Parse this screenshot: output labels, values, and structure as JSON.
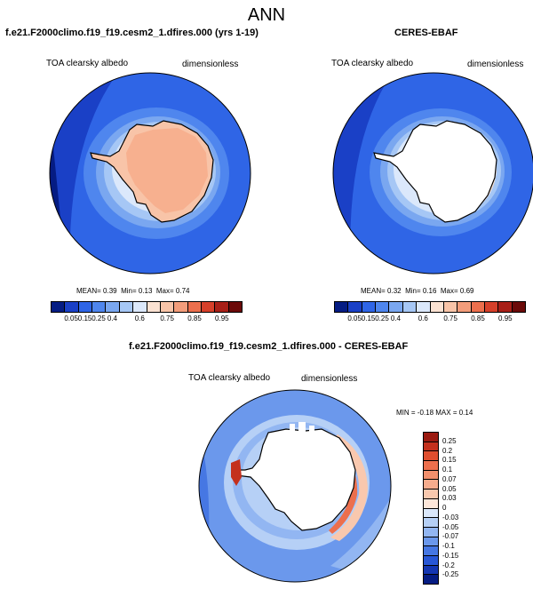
{
  "figure_title": "ANN",
  "panels": [
    {
      "title": "f.e21.F2000climo.f19_f19.cesm2_1.dfires.000 (yrs 1-19)",
      "left_label": "TOA clearsky albedo",
      "right_label": "dimensionless",
      "stats": {
        "mean": "0.39",
        "min": "0.13",
        "max": "0.74"
      }
    },
    {
      "title": "CERES-EBAF",
      "left_label": "TOA clearsky albedo",
      "right_label": "dimensionless",
      "stats": {
        "mean": "0.32",
        "min": "0.16",
        "max": "0.69"
      }
    },
    {
      "title": "f.e21.F2000climo.f19_f19.cesm2_1.dfires.000 - CERES-EBAF",
      "left_label": "TOA clearsky albedo",
      "right_label": "dimensionless",
      "stats": {
        "min": "-0.18",
        "max": "0.14"
      }
    }
  ],
  "labels": {
    "mean": "MEAN=",
    "min": "Min=",
    "max": "Max=",
    "diff_min": "MIN =",
    "diff_max": "MAX ="
  },
  "chart_data": [
    {
      "type": "heatmap",
      "projection": "south-polar-stereographic",
      "field": "model TOA clearsky albedo",
      "levels": [
        "0.05",
        "0.15",
        "0.25",
        "0.4",
        "0.6",
        "0.75",
        "0.85",
        "0.95"
      ],
      "colors": [
        "#051c83",
        "#1a40c6",
        "#2f65e6",
        "#4f86ee",
        "#7aa7f0",
        "#a6c7f5",
        "#dbe8fb",
        "#fbe2d2",
        "#f8c4a8",
        "#f39d7b",
        "#ec6f4d",
        "#d6402a",
        "#a81f17",
        "#6b0a09"
      ]
    },
    {
      "type": "heatmap",
      "projection": "south-polar-stereographic",
      "field": "CERES-EBAF TOA clearsky albedo",
      "levels": [
        "0.05",
        "0.15",
        "0.25",
        "0.4",
        "0.6",
        "0.75",
        "0.85",
        "0.95"
      ],
      "colors": [
        "#051c83",
        "#1a40c6",
        "#2f65e6",
        "#4f86ee",
        "#7aa7f0",
        "#a6c7f5",
        "#dbe8fb",
        "#fbe2d2",
        "#f8c4a8",
        "#f39d7b",
        "#ec6f4d",
        "#d6402a",
        "#a81f17",
        "#6b0a09"
      ]
    },
    {
      "type": "heatmap",
      "projection": "south-polar-stereographic",
      "field": "difference (model - obs)",
      "levels": [
        "0.25",
        "0.2",
        "0.15",
        "0.1",
        "0.07",
        "0.05",
        "0.03",
        "0",
        "-0.03",
        "-0.05",
        "-0.07",
        "-0.1",
        "-0.15",
        "-0.2",
        "-0.25"
      ],
      "colors": [
        "#9b1a11",
        "#c4301d",
        "#df4e2f",
        "#ec6f4d",
        "#f3906d",
        "#f6ac8d",
        "#f9c8ae",
        "#fde7da",
        "#dbe8fb",
        "#b6d0f6",
        "#92b6f2",
        "#6b98ec",
        "#4677e3",
        "#2857d6",
        "#1436b2",
        "#051c83"
      ]
    }
  ]
}
